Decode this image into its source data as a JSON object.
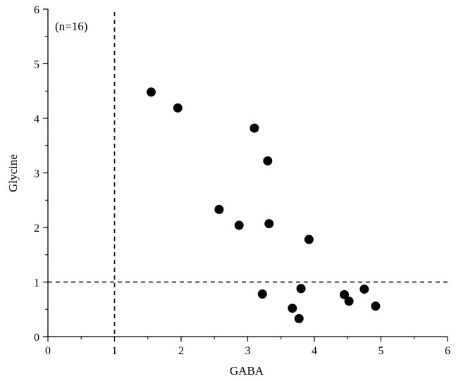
{
  "chart_data": {
    "type": "scatter",
    "title": "",
    "xlabel": "GABA",
    "ylabel": "Glycine",
    "xlim": [
      0,
      6
    ],
    "ylim": [
      0,
      6
    ],
    "x_ticks": [
      "0",
      "1",
      "2",
      "3",
      "4",
      "5",
      "6"
    ],
    "y_ticks": [
      "0",
      "1",
      "2",
      "3",
      "4",
      "5",
      "6"
    ],
    "grid": false,
    "annotation": "(n=16)",
    "reference_lines": [
      {
        "orientation": "vertical",
        "value": 1,
        "style": "dashed"
      },
      {
        "orientation": "horizontal",
        "value": 1,
        "style": "dashed"
      }
    ],
    "marker_color": "#000000",
    "points": [
      {
        "x": 1.55,
        "y": 4.48
      },
      {
        "x": 1.95,
        "y": 4.19
      },
      {
        "x": 3.1,
        "y": 3.82
      },
      {
        "x": 3.3,
        "y": 3.22
      },
      {
        "x": 2.57,
        "y": 2.33
      },
      {
        "x": 2.87,
        "y": 2.04
      },
      {
        "x": 3.32,
        "y": 2.07
      },
      {
        "x": 3.92,
        "y": 1.78
      },
      {
        "x": 3.22,
        "y": 0.78
      },
      {
        "x": 3.8,
        "y": 0.88
      },
      {
        "x": 3.67,
        "y": 0.52
      },
      {
        "x": 3.77,
        "y": 0.33
      },
      {
        "x": 4.45,
        "y": 0.77
      },
      {
        "x": 4.52,
        "y": 0.65
      },
      {
        "x": 4.75,
        "y": 0.87
      },
      {
        "x": 4.92,
        "y": 0.56
      }
    ]
  }
}
